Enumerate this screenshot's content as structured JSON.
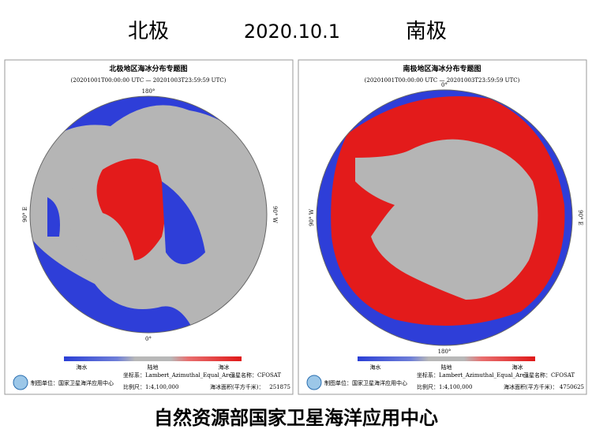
{
  "header": {
    "left": "北极",
    "date": "2020.10.1",
    "right": "南极"
  },
  "panels": [
    {
      "title": "北极地区海冰分布专题图",
      "period": "(20201001T00:00:00 UTC — 20201003T23:59:59 UTC)",
      "top_lon": "180°",
      "bottom_lon": "0°",
      "left_lon": "90° E",
      "right_lon": "90° W",
      "legend": [
        "海水",
        "陆地",
        "海冰"
      ],
      "unit": "制图单位：国家卫星海洋应用中心",
      "coordinate": "坐标系：Lambert_Azimuthal_Equal_Area",
      "scale": "比例尺：1:4,100,000",
      "satellite": "卫星名称：CFOSAT",
      "area_label": "海冰面积(平方千米)：",
      "area": 251875
    },
    {
      "title": "南极地区海冰分布专题图",
      "period": "(20201001T00:00:00 UTC — 20201003T23:59:59 UTC)",
      "top_lon": "0°",
      "bottom_lon": "180°",
      "left_lon": "90° W",
      "right_lon": "90° E",
      "legend": [
        "海水",
        "陆地",
        "海冰"
      ],
      "unit": "制图单位：国家卫星海洋应用中心",
      "coordinate": "坐标系：Lambert_Azimuthal_Equal_Area",
      "scale": "比例尺：1:4,100,000",
      "satellite": "卫星名称：CFOSAT",
      "area_label": "海冰面积(平方千米)：",
      "area": 4750625
    }
  ],
  "footer": "自然资源部国家卫星海洋应用中心"
}
